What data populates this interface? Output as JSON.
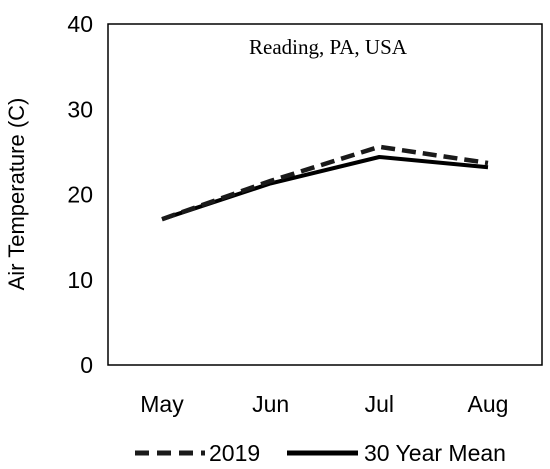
{
  "chart_data": {
    "type": "line",
    "title": "",
    "annotation": "Reading, PA, USA",
    "xlabel": "",
    "ylabel": "Air Temperature (C)",
    "categories": [
      "May",
      "Jun",
      "Jul",
      "Aug"
    ],
    "ylim": [
      0,
      40
    ],
    "yticks": [
      "0",
      "10",
      "20",
      "30",
      "40"
    ],
    "grid": false,
    "legend_position": "bottom",
    "series": [
      {
        "name": "2019",
        "values": [
          17.1,
          21.6,
          25.6,
          23.7
        ],
        "style": "dashed",
        "color": "#1a1a1a"
      },
      {
        "name": "30 Year Mean",
        "values": [
          17.1,
          21.3,
          24.4,
          23.2
        ],
        "style": "solid",
        "color": "#000000"
      }
    ]
  }
}
